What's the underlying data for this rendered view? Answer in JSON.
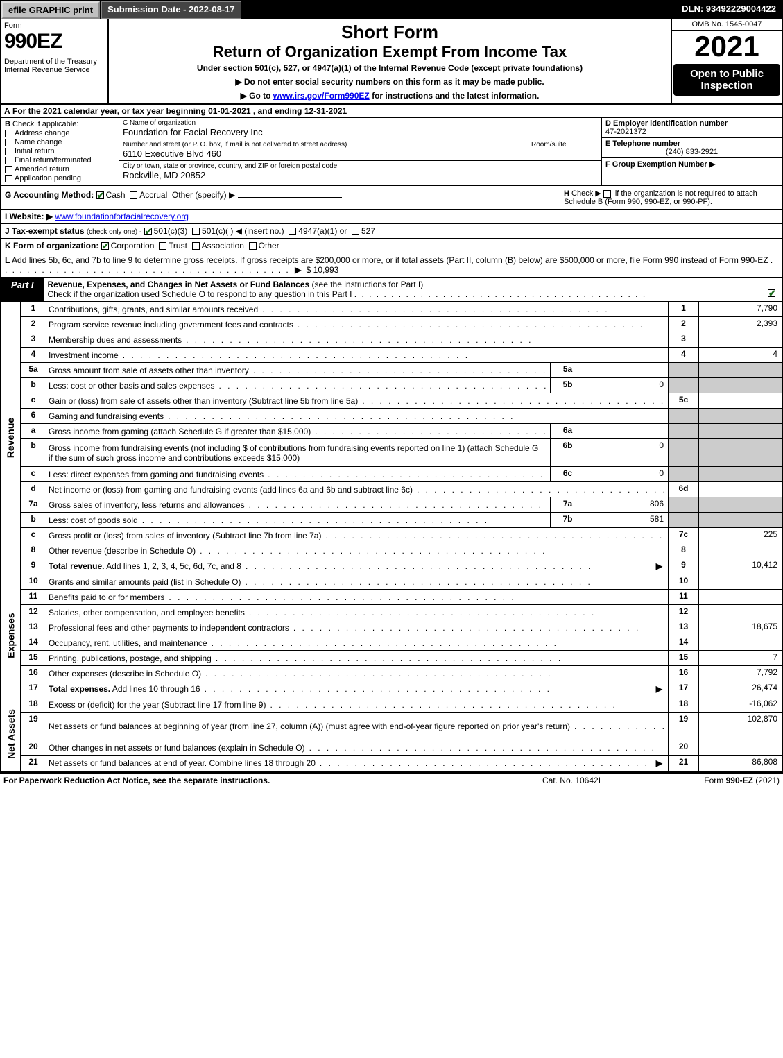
{
  "topbar": {
    "efile": "efile GRAPHIC print",
    "submission": "Submission Date - 2022-08-17",
    "dln": "DLN: 93492229004422"
  },
  "header": {
    "form_label": "Form",
    "form_number": "990EZ",
    "dept": "Department of the Treasury\nInternal Revenue Service",
    "short": "Short Form",
    "title": "Return of Organization Exempt From Income Tax",
    "subtitle": "Under section 501(c), 527, or 4947(a)(1) of the Internal Revenue Code (except private foundations)",
    "note1": "▶ Do not enter social security numbers on this form as it may be made public.",
    "note2_pre": "▶ Go to ",
    "note2_link": "www.irs.gov/Form990EZ",
    "note2_post": " for instructions and the latest information.",
    "omb": "OMB No. 1545-0047",
    "year": "2021",
    "open": "Open to Public Inspection"
  },
  "row_a": {
    "label": "A",
    "text": "For the 2021 calendar year, or tax year beginning 01-01-2021 , and ending 12-31-2021"
  },
  "col_b": {
    "hdr": "B",
    "hdr_text": "Check if applicable:",
    "opts": [
      "Address change",
      "Name change",
      "Initial return",
      "Final return/terminated",
      "Amended return",
      "Application pending"
    ]
  },
  "col_c": {
    "name_lbl": "C Name of organization",
    "name_val": "Foundation for Facial Recovery Inc",
    "street_lbl": "Number and street (or P. O. box, if mail is not delivered to street address)",
    "street_val": "6110 Executive Blvd 460",
    "room_lbl": "Room/suite",
    "city_lbl": "City or town, state or province, country, and ZIP or foreign postal code",
    "city_val": "Rockville, MD  20852"
  },
  "col_d": {
    "ein_lbl": "D Employer identification number",
    "ein_val": "47-2021372",
    "tel_lbl": "E Telephone number",
    "tel_val": "(240) 833-2921",
    "grp_lbl": "F Group Exemption Number ▶"
  },
  "row_g": {
    "label": "G Accounting Method:",
    "cash": "Cash",
    "accrual": "Accrual",
    "other": "Other (specify) ▶"
  },
  "row_h": {
    "label": "H",
    "text1": "Check ▶",
    "text2": "if the organization is not required to attach Schedule B (Form 990, 990-EZ, or 990-PF)."
  },
  "row_i": {
    "label": "I Website: ▶",
    "link": "www.foundationforfacialrecovery.org"
  },
  "row_j": {
    "label": "J Tax-exempt status",
    "sub": "(check only one) -",
    "o1": "501(c)(3)",
    "o2": "501(c)(  ) ◀ (insert no.)",
    "o3": "4947(a)(1) or",
    "o4": "527"
  },
  "row_k": {
    "label": "K Form of organization:",
    "opts": [
      "Corporation",
      "Trust",
      "Association",
      "Other"
    ]
  },
  "row_l": {
    "label": "L",
    "text": "Add lines 5b, 6c, and 7b to line 9 to determine gross receipts. If gross receipts are $200,000 or more, or if total assets (Part II, column (B) below) are $500,000 or more, file Form 990 instead of Form 990-EZ",
    "amount": "$ 10,993"
  },
  "part1": {
    "tab": "Part I",
    "title": "Revenue, Expenses, and Changes in Net Assets or Fund Balances",
    "sub": "(see the instructions for Part I)",
    "check": "Check if the organization used Schedule O to respond to any question in this Part I"
  },
  "revenue": [
    {
      "n": "1",
      "d": "Contributions, gifts, grants, and similar amounts received",
      "bn": "1",
      "bv": "7,790"
    },
    {
      "n": "2",
      "d": "Program service revenue including government fees and contracts",
      "bn": "2",
      "bv": "2,393"
    },
    {
      "n": "3",
      "d": "Membership dues and assessments",
      "bn": "3",
      "bv": ""
    },
    {
      "n": "4",
      "d": "Investment income",
      "bn": "4",
      "bv": "4"
    },
    {
      "n": "5a",
      "d": "Gross amount from sale of assets other than inventory",
      "sc": "5a",
      "sv": "",
      "shade": true
    },
    {
      "n": "b",
      "d": "Less: cost or other basis and sales expenses",
      "sc": "5b",
      "sv": "0",
      "shade": true
    },
    {
      "n": "c",
      "d": "Gain or (loss) from sale of assets other than inventory (Subtract line 5b from line 5a)",
      "bn": "5c",
      "bv": ""
    },
    {
      "n": "6",
      "d": "Gaming and fundraising events",
      "shade": true,
      "noboxes": true
    },
    {
      "n": "a",
      "d": "Gross income from gaming (attach Schedule G if greater than $15,000)",
      "sc": "6a",
      "sv": "",
      "shade": true
    },
    {
      "n": "b",
      "d": "Gross income from fundraising events (not including $                   of contributions from fundraising events reported on line 1) (attach Schedule G if the sum of such gross income and contributions exceeds $15,000)",
      "sc": "6b",
      "sv": "0",
      "shade": true,
      "tall": true
    },
    {
      "n": "c",
      "d": "Less: direct expenses from gaming and fundraising events",
      "sc": "6c",
      "sv": "0",
      "shade": true
    },
    {
      "n": "d",
      "d": "Net income or (loss) from gaming and fundraising events (add lines 6a and 6b and subtract line 6c)",
      "bn": "6d",
      "bv": ""
    },
    {
      "n": "7a",
      "d": "Gross sales of inventory, less returns and allowances",
      "sc": "7a",
      "sv": "806",
      "shade": true
    },
    {
      "n": "b",
      "d": "Less: cost of goods sold",
      "sc": "7b",
      "sv": "581",
      "shade": true
    },
    {
      "n": "c",
      "d": "Gross profit or (loss) from sales of inventory (Subtract line 7b from line 7a)",
      "bn": "7c",
      "bv": "225"
    },
    {
      "n": "8",
      "d": "Other revenue (describe in Schedule O)",
      "bn": "8",
      "bv": ""
    },
    {
      "n": "9",
      "d": "Total revenue. Add lines 1, 2, 3, 4, 5c, 6d, 7c, and 8",
      "bn": "9",
      "bv": "10,412",
      "bold": true,
      "arrow": true
    }
  ],
  "expenses": [
    {
      "n": "10",
      "d": "Grants and similar amounts paid (list in Schedule O)",
      "bn": "10",
      "bv": ""
    },
    {
      "n": "11",
      "d": "Benefits paid to or for members",
      "bn": "11",
      "bv": ""
    },
    {
      "n": "12",
      "d": "Salaries, other compensation, and employee benefits",
      "bn": "12",
      "bv": ""
    },
    {
      "n": "13",
      "d": "Professional fees and other payments to independent contractors",
      "bn": "13",
      "bv": "18,675"
    },
    {
      "n": "14",
      "d": "Occupancy, rent, utilities, and maintenance",
      "bn": "14",
      "bv": ""
    },
    {
      "n": "15",
      "d": "Printing, publications, postage, and shipping",
      "bn": "15",
      "bv": "7"
    },
    {
      "n": "16",
      "d": "Other expenses (describe in Schedule O)",
      "bn": "16",
      "bv": "7,792"
    },
    {
      "n": "17",
      "d": "Total expenses. Add lines 10 through 16",
      "bn": "17",
      "bv": "26,474",
      "bold": true,
      "arrow": true
    }
  ],
  "netassets": [
    {
      "n": "18",
      "d": "Excess or (deficit) for the year (Subtract line 17 from line 9)",
      "bn": "18",
      "bv": "-16,062"
    },
    {
      "n": "19",
      "d": "Net assets or fund balances at beginning of year (from line 27, column (A)) (must agree with end-of-year figure reported on prior year's return)",
      "bn": "19",
      "bv": "102,870",
      "tall": true
    },
    {
      "n": "20",
      "d": "Other changes in net assets or fund balances (explain in Schedule O)",
      "bn": "20",
      "bv": ""
    },
    {
      "n": "21",
      "d": "Net assets or fund balances at end of year. Combine lines 18 through 20",
      "bn": "21",
      "bv": "86,808",
      "arrow": true
    }
  ],
  "side_labels": {
    "revenue": "Revenue",
    "expenses": "Expenses",
    "netassets": "Net Assets"
  },
  "footer": {
    "left": "For Paperwork Reduction Act Notice, see the separate instructions.",
    "mid": "Cat. No. 10642I",
    "right_pre": "Form ",
    "right_bold": "990-EZ",
    "right_post": " (2021)"
  },
  "dots": ". . . . . . . . . . . . . . . . . . . . . . . . . . . . . . . . . . . . . . . ."
}
